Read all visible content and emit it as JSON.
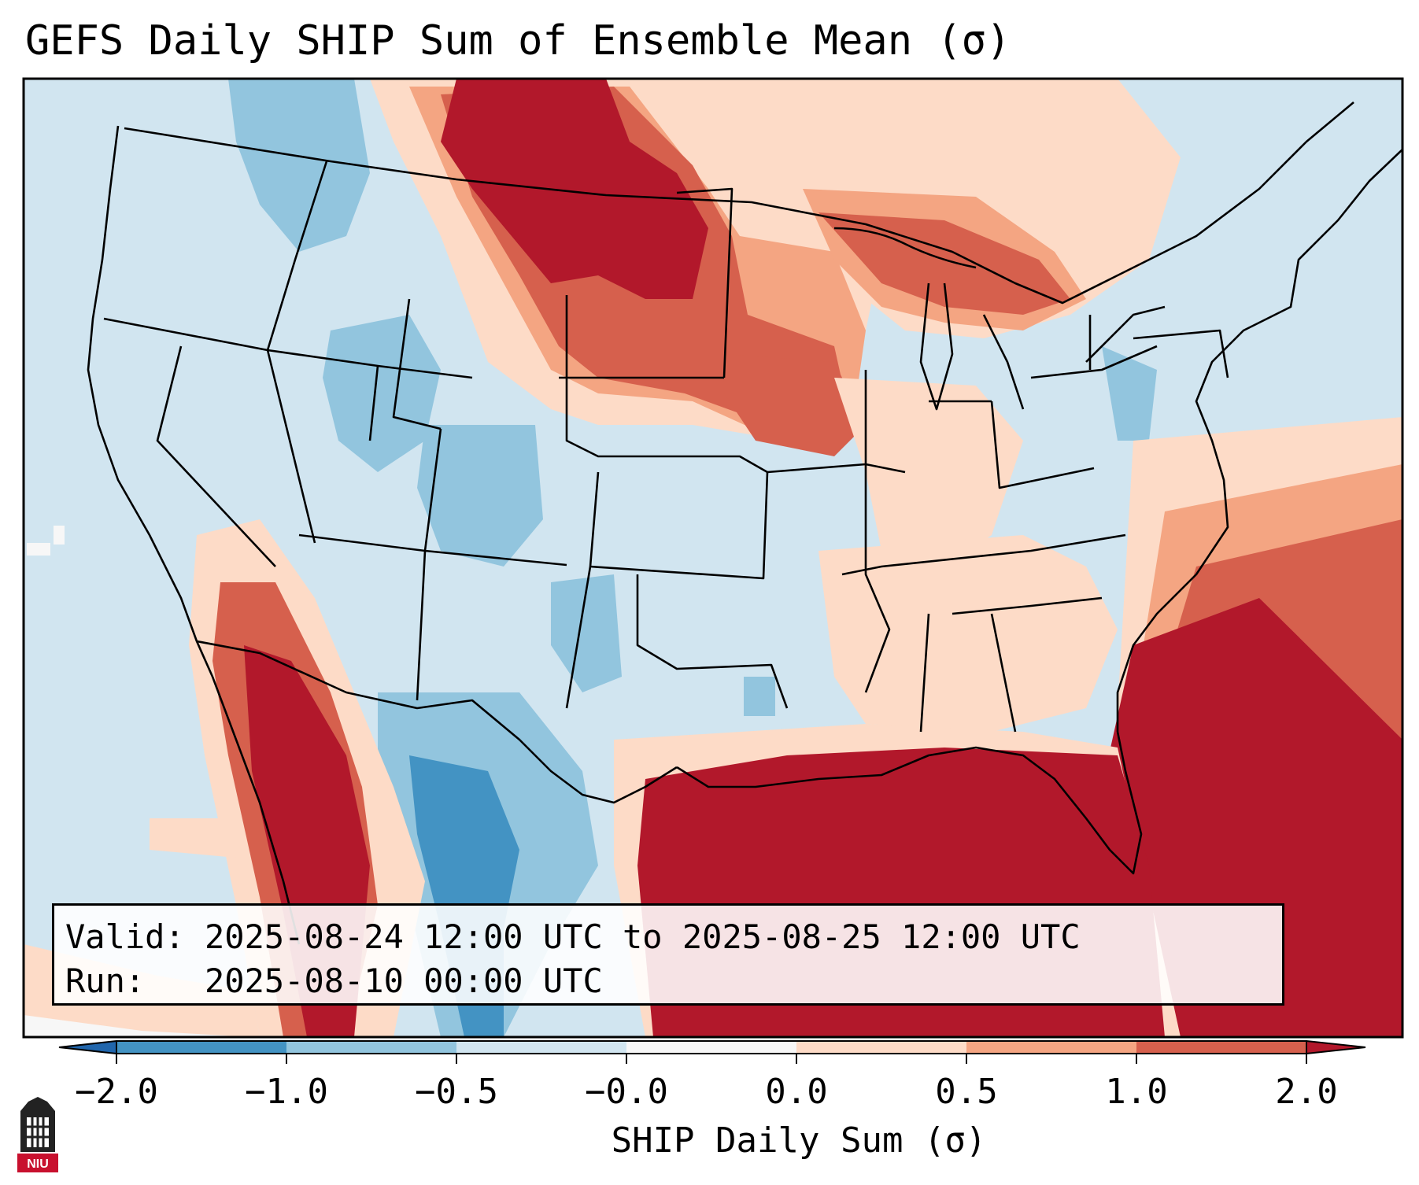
{
  "title": "GEFS Daily SHIP Sum of Ensemble Mean (σ)",
  "info": {
    "valid_label": "Valid:",
    "valid_value": "2025-08-24 12:00 UTC to 2025-08-25 12:00 UTC",
    "run_label": "Run:",
    "run_value": "2025-08-10 00:00 UTC"
  },
  "colorbar": {
    "label": "SHIP Daily Sum (σ)",
    "ticks": [
      "−2.0",
      "−1.0",
      "−0.5",
      "−0.0",
      "0.0",
      "0.5",
      "1.0",
      "2.0"
    ],
    "bins": [
      {
        "range": "< -2.0",
        "color": "#2166ac"
      },
      {
        "range": "-2.0 to -1.0",
        "color": "#4393c3"
      },
      {
        "range": "-1.0 to -0.5",
        "color": "#92c5de"
      },
      {
        "range": "-0.5 to -0.0",
        "color": "#d1e5f0"
      },
      {
        "range": "-0.0 to 0.0",
        "color": "#f7f7f7"
      },
      {
        "range": "0.0 to 0.5",
        "color": "#fddbc7"
      },
      {
        "range": "0.5 to 1.0",
        "color": "#f4a582"
      },
      {
        "range": "1.0 to 2.0",
        "color": "#d6604d"
      },
      {
        "range": "> 2.0",
        "color": "#b2182b"
      }
    ]
  },
  "logo": {
    "text": "NIU",
    "color": "#c8102e"
  }
}
